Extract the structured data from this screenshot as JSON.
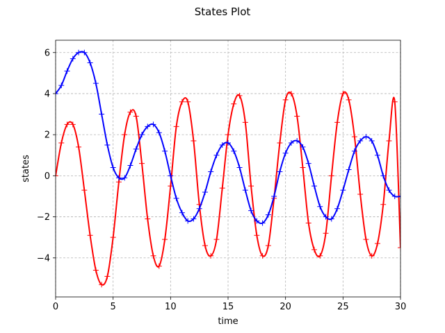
{
  "chart_data": {
    "type": "line",
    "title": "States Plot",
    "xlabel": "time",
    "ylabel": "states",
    "xlim": [
      0,
      30
    ],
    "ylim": [
      -5.9,
      6.6
    ],
    "xticks": [
      "0",
      "5",
      "10",
      "15",
      "20",
      "25",
      "30"
    ],
    "xtick_values": [
      0,
      5,
      10,
      15,
      20,
      25,
      30
    ],
    "yticks": [
      "−4",
      "−2",
      "0",
      "2",
      "4",
      "6"
    ],
    "ytick_values": [
      -4,
      -2,
      0,
      2,
      4,
      6
    ],
    "grid": true,
    "marker": "+",
    "series": [
      {
        "color": "#ff0000",
        "x": [
          0,
          0.5,
          1,
          1.5,
          2,
          2.5,
          3,
          3.5,
          4,
          4.5,
          5,
          5.5,
          6,
          6.5,
          7,
          7.5,
          8,
          8.5,
          9,
          9.5,
          10,
          10.5,
          11,
          11.5,
          12,
          12.5,
          13,
          13.5,
          14,
          14.5,
          15,
          15.5,
          16,
          16.5,
          17,
          17.5,
          18,
          18.5,
          19,
          19.5,
          20,
          20.5,
          21,
          21.5,
          22,
          22.5,
          23,
          23.5,
          24,
          24.5,
          25,
          25.5,
          26,
          26.5,
          27,
          27.5,
          28,
          28.5,
          29,
          29.5,
          30
        ],
        "values": [
          0.0,
          1.6,
          2.5,
          2.5,
          1.4,
          -0.7,
          -2.9,
          -4.6,
          -5.3,
          -4.9,
          -3.0,
          -0.3,
          2.0,
          3.1,
          2.9,
          0.6,
          -2.1,
          -3.9,
          -4.4,
          -3.1,
          -0.5,
          2.4,
          3.6,
          3.6,
          1.7,
          -1.4,
          -3.4,
          -3.9,
          -3.1,
          -0.6,
          2.0,
          3.5,
          3.9,
          2.6,
          -0.5,
          -2.9,
          -3.9,
          -3.4,
          -1.1,
          1.6,
          3.7,
          4.0,
          2.9,
          0.4,
          -2.3,
          -3.6,
          -3.9,
          -2.8,
          0.0,
          2.6,
          4.0,
          3.7,
          1.9,
          -0.9,
          -3.1,
          -3.9,
          -3.3,
          -1.4,
          1.7,
          3.6,
          -3.5
        ]
      },
      {
        "color": "#0000ff",
        "x": [
          0,
          0.5,
          1,
          1.5,
          2,
          2.5,
          3,
          3.5,
          4,
          4.5,
          5,
          5.5,
          6,
          6.5,
          7,
          7.5,
          8,
          8.5,
          9,
          9.5,
          10,
          10.5,
          11,
          11.5,
          12,
          12.5,
          13,
          13.5,
          14,
          14.5,
          15,
          15.5,
          16,
          16.5,
          17,
          17.5,
          18,
          18.5,
          19,
          19.5,
          20,
          20.5,
          21,
          21.5,
          22,
          22.5,
          23,
          23.5,
          24,
          24.5,
          25,
          25.5,
          26,
          26.5,
          27,
          27.5,
          28,
          28.5,
          29,
          29.5,
          30
        ],
        "values": [
          4.0,
          4.4,
          5.1,
          5.7,
          6.0,
          6.0,
          5.5,
          4.5,
          3.0,
          1.5,
          0.4,
          -0.1,
          -0.1,
          0.5,
          1.3,
          2.0,
          2.4,
          2.5,
          2.1,
          1.2,
          0.0,
          -1.1,
          -1.8,
          -2.2,
          -2.1,
          -1.6,
          -0.8,
          0.2,
          1.0,
          1.5,
          1.6,
          1.2,
          0.4,
          -0.7,
          -1.7,
          -2.2,
          -2.3,
          -1.9,
          -1.0,
          0.2,
          1.1,
          1.6,
          1.7,
          1.4,
          0.6,
          -0.5,
          -1.5,
          -2.0,
          -2.1,
          -1.6,
          -0.7,
          0.3,
          1.2,
          1.7,
          1.9,
          1.7,
          1.0,
          0.0,
          -0.7,
          -1.0,
          -1.0
        ]
      }
    ]
  }
}
